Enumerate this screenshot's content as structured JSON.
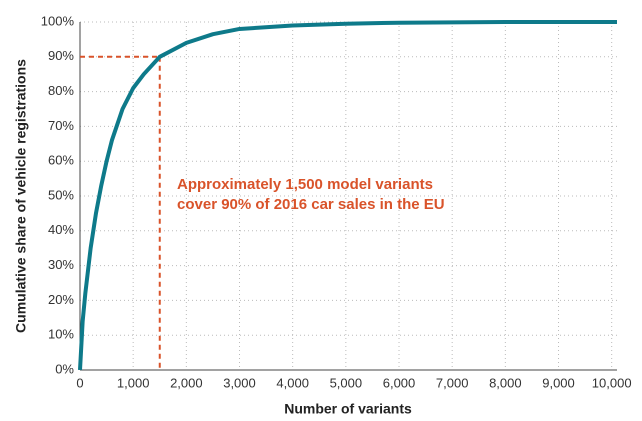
{
  "chart_data": {
    "type": "line",
    "xlabel": "Number of variants",
    "ylabel": "Cumulative share of vehicle registrations",
    "annotation": [
      "Approximately 1,500 model variants",
      "cover 90% of 2016 car sales in the EU"
    ],
    "reference_point": {
      "x": 1500,
      "y": 90
    },
    "x": [
      0,
      50,
      100,
      200,
      300,
      400,
      500,
      600,
      800,
      1000,
      1200,
      1500,
      2000,
      2500,
      3000,
      4000,
      5000,
      6000,
      8000,
      10100
    ],
    "series": [
      {
        "name": "Cumulative share",
        "color": "#0e7a8a",
        "values": [
          0,
          14,
          22,
          35,
          45,
          53,
          60,
          66,
          75,
          81,
          85,
          90,
          94,
          96.5,
          98,
          99,
          99.5,
          99.8,
          100,
          100
        ]
      }
    ],
    "xlim": [
      0,
      10100
    ],
    "ylim": [
      0,
      100
    ],
    "xticks": [
      0,
      {
        "value": 1000,
        "label": "1,000"
      },
      {
        "value": 2000,
        "label": "2,000"
      },
      {
        "value": 3000,
        "label": "3,000"
      },
      {
        "value": 4000,
        "label": "4,000"
      },
      {
        "value": 5000,
        "label": "5,000"
      },
      {
        "value": 6000,
        "label": "6,000"
      },
      {
        "value": 7000,
        "label": "7,000"
      },
      {
        "value": 8000,
        "label": "8,000"
      },
      {
        "value": 9000,
        "label": "9,000"
      },
      {
        "value": 10000,
        "label": "10,000"
      }
    ],
    "yticks": [
      {
        "value": 0,
        "label": "0%"
      },
      {
        "value": 10,
        "label": "10%"
      },
      {
        "value": 20,
        "label": "20%"
      },
      {
        "value": 30,
        "label": "30%"
      },
      {
        "value": 40,
        "label": "40%"
      },
      {
        "value": 50,
        "label": "50%"
      },
      {
        "value": 60,
        "label": "60%"
      },
      {
        "value": 70,
        "label": "70%"
      },
      {
        "value": 80,
        "label": "80%"
      },
      {
        "value": 90,
        "label": "90%"
      },
      {
        "value": 100,
        "label": "100%"
      }
    ],
    "grid": true,
    "annotation_color": "#d9532a"
  }
}
